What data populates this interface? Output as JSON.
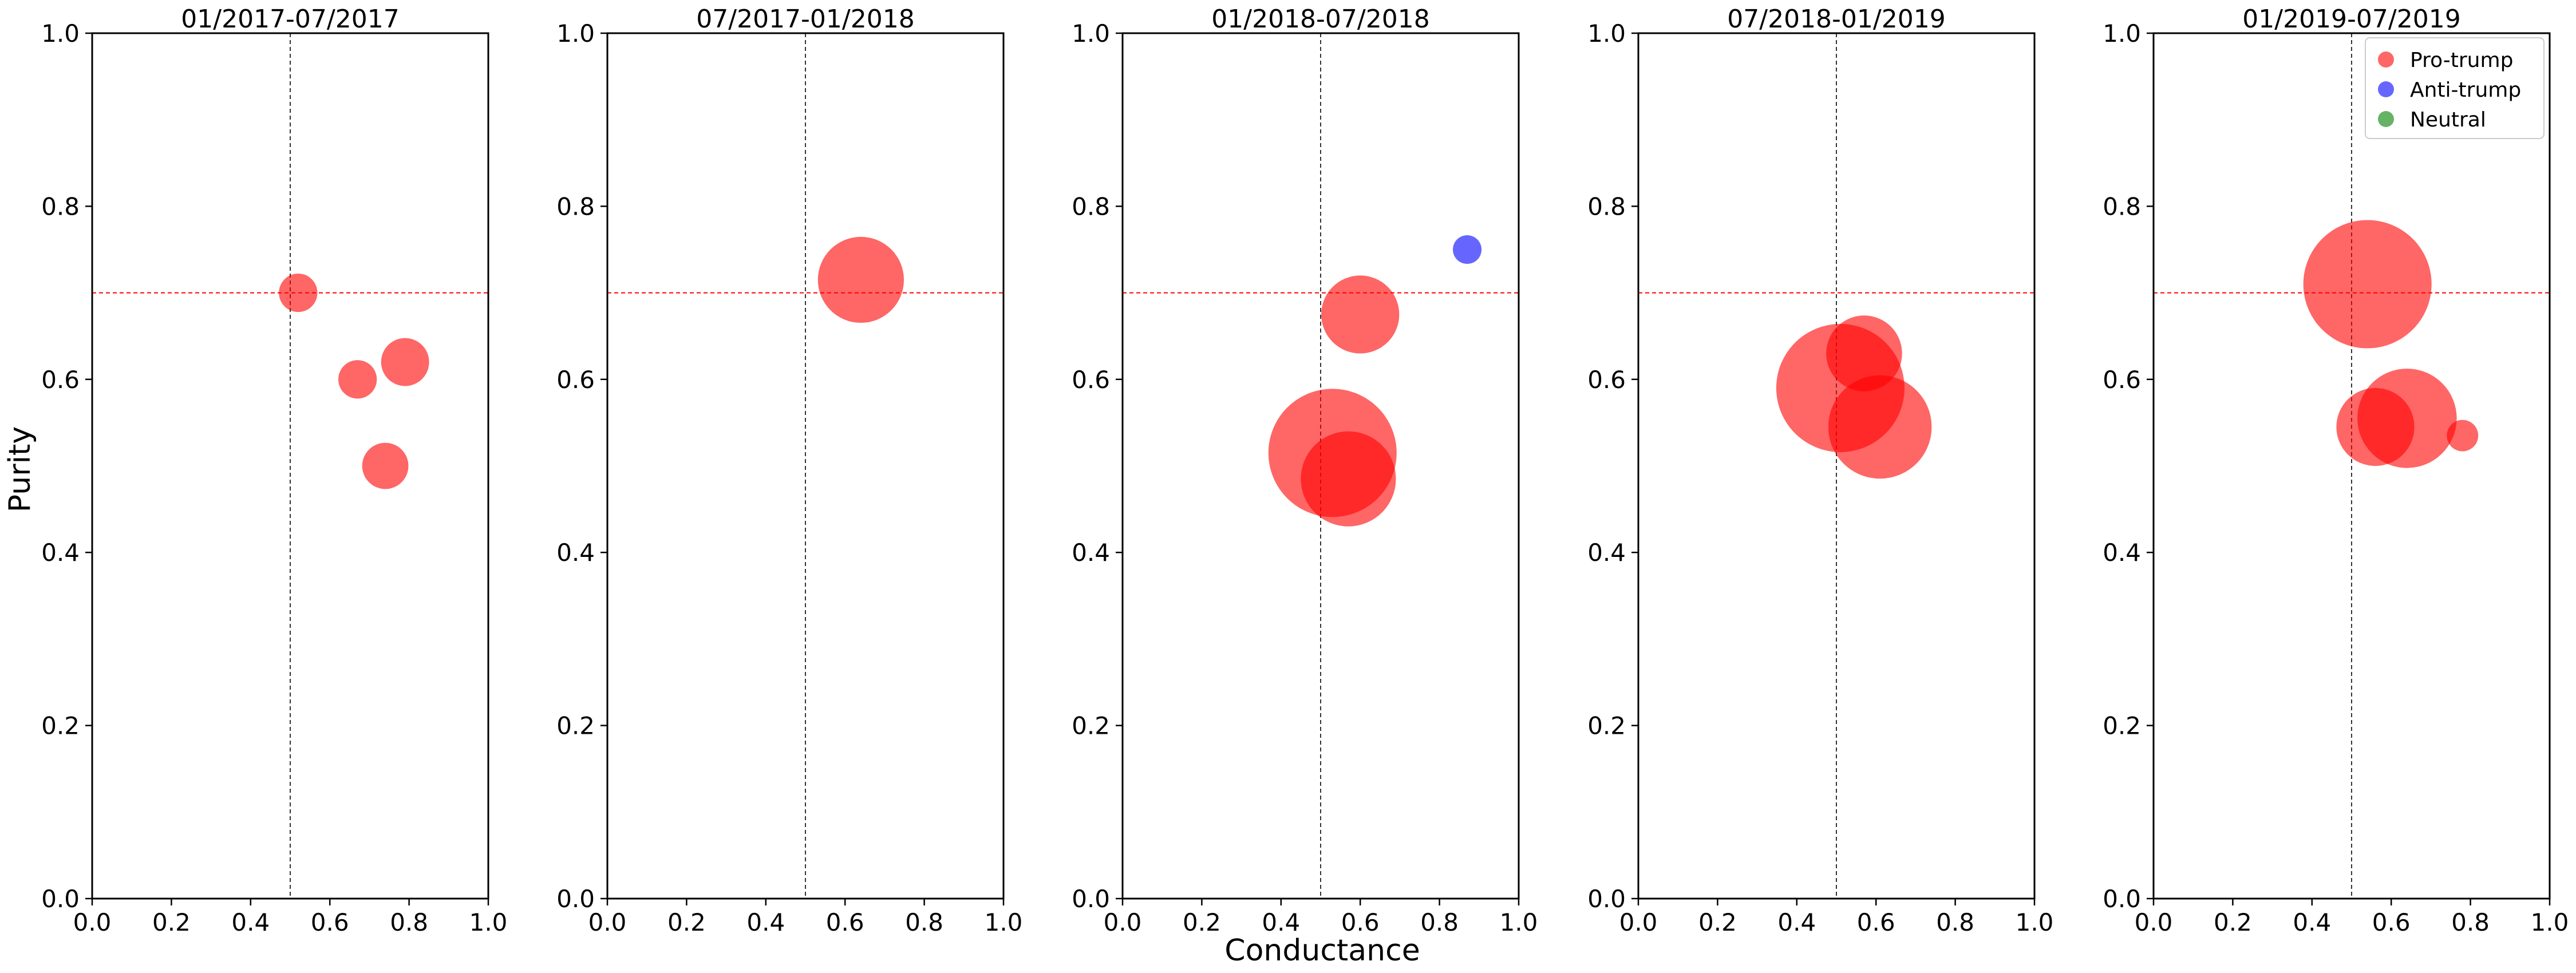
{
  "chart_data": {
    "type": "scatter",
    "xlabel": "Conductance",
    "ylabel": "Purity",
    "xlim": [
      0,
      1
    ],
    "ylim": [
      0,
      1
    ],
    "xticks": [
      "0.0",
      "0.2",
      "0.4",
      "0.6",
      "0.8",
      "1.0"
    ],
    "yticks": [
      "0.0",
      "0.2",
      "0.4",
      "0.6",
      "0.8",
      "1.0"
    ],
    "reference_lines": {
      "vertical_x": 0.5,
      "horizontal_y": 0.7
    },
    "legend": {
      "placement": "top-right",
      "entries": [
        {
          "label": "Pro-trump",
          "color": "#ff0000"
        },
        {
          "label": "Anti-trump",
          "color": "#0000ff"
        },
        {
          "label": "Neutral",
          "color": "#008000"
        }
      ]
    },
    "panels": [
      {
        "title": "01/2017-07/2017",
        "points": [
          {
            "x": 0.52,
            "y": 0.7,
            "size": 0.09,
            "group": "Pro-trump"
          },
          {
            "x": 0.67,
            "y": 0.6,
            "size": 0.09,
            "group": "Pro-trump"
          },
          {
            "x": 0.79,
            "y": 0.62,
            "size": 0.14,
            "group": "Pro-trump"
          },
          {
            "x": 0.74,
            "y": 0.5,
            "size": 0.13,
            "group": "Pro-trump"
          }
        ]
      },
      {
        "title": "07/2017-01/2018",
        "points": [
          {
            "x": 0.64,
            "y": 0.715,
            "size": 0.45,
            "group": "Pro-trump"
          }
        ]
      },
      {
        "title": "01/2018-07/2018",
        "points": [
          {
            "x": 0.87,
            "y": 0.75,
            "size": 0.05,
            "group": "Anti-trump"
          },
          {
            "x": 0.6,
            "y": 0.675,
            "size": 0.37,
            "group": "Pro-trump"
          },
          {
            "x": 0.53,
            "y": 0.515,
            "size": 1.0,
            "group": "Pro-trump"
          },
          {
            "x": 0.57,
            "y": 0.485,
            "size": 0.55,
            "group": "Pro-trump"
          }
        ]
      },
      {
        "title": "07/2018-01/2019",
        "points": [
          {
            "x": 0.51,
            "y": 0.59,
            "size": 1.0,
            "group": "Pro-trump"
          },
          {
            "x": 0.57,
            "y": 0.63,
            "size": 0.35,
            "group": "Pro-trump"
          },
          {
            "x": 0.61,
            "y": 0.545,
            "size": 0.65,
            "group": "Pro-trump"
          }
        ]
      },
      {
        "title": "01/2019-07/2019",
        "points": [
          {
            "x": 0.54,
            "y": 0.71,
            "size": 1.0,
            "group": "Pro-trump"
          },
          {
            "x": 0.64,
            "y": 0.555,
            "size": 0.6,
            "group": "Pro-trump"
          },
          {
            "x": 0.56,
            "y": 0.545,
            "size": 0.37,
            "group": "Pro-trump"
          },
          {
            "x": 0.78,
            "y": 0.535,
            "size": 0.06,
            "group": "Pro-trump"
          }
        ]
      }
    ]
  }
}
